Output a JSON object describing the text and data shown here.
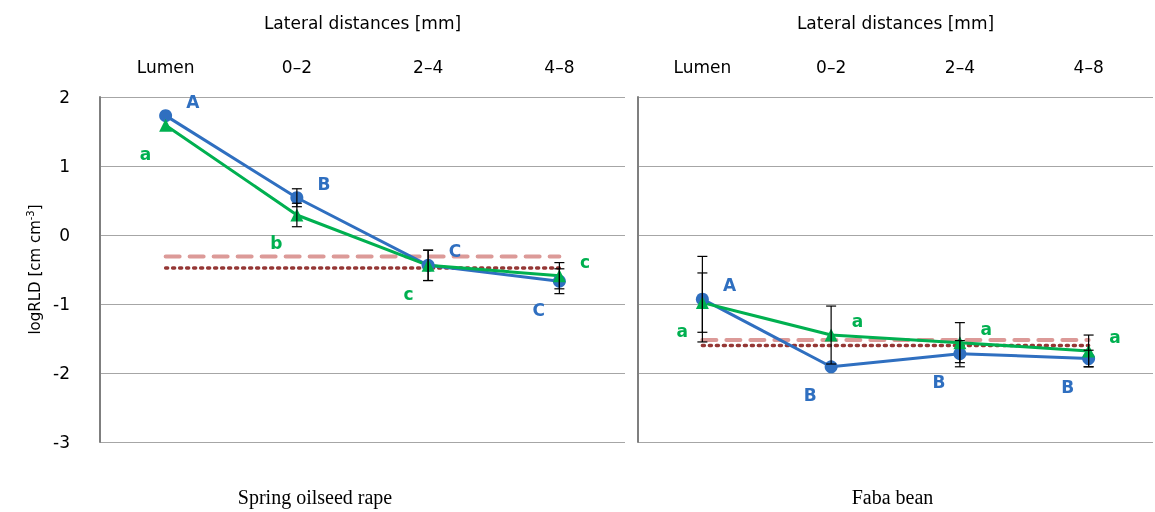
{
  "chart_data": [
    {
      "type": "line",
      "title": "Spring oilseed rape",
      "xlabel": "Lateral distances [mm]",
      "ylabel": "logRLD [cm cm$^{-3}$]",
      "categories": [
        "Lumen",
        "0–2",
        "2–4",
        "4–8"
      ],
      "ylim": [
        -3,
        2
      ],
      "yticks": [
        -3,
        -2,
        -1,
        0,
        1,
        2
      ],
      "grid": "y",
      "line_style": "solid",
      "series": [
        {
          "color": "#2f6fc0",
          "marker": "circle",
          "values": [
            1.73,
            0.54,
            -0.44,
            -0.67
          ],
          "errors": [
            null,
            0.13,
            0.22,
            0.18
          ],
          "value_labels": [
            "A",
            "B",
            "C",
            "C"
          ]
        },
        {
          "color": "#00b050",
          "marker": "triangle",
          "values": [
            1.59,
            0.29,
            -0.44,
            -0.59
          ],
          "errors": [
            null,
            0.17,
            0.22,
            0.19
          ],
          "value_labels": [
            "a",
            "b",
            "c",
            "c"
          ]
        }
      ],
      "ref_lines": [
        {
          "axis": "y",
          "value": -0.31,
          "color": "#dc9a98",
          "line_style": "dashed"
        },
        {
          "axis": "y",
          "value": -0.48,
          "color": "#953735",
          "line_style": "dotted"
        }
      ]
    },
    {
      "type": "line",
      "title": "Faba bean",
      "xlabel": "Lateral distances [mm]",
      "categories": [
        "Lumen",
        "0–2",
        "2–4",
        "4–8"
      ],
      "ylim": [
        -3,
        2
      ],
      "yticks": [
        -3,
        -2,
        -1,
        0,
        1,
        2
      ],
      "grid": "y",
      "line_style": "solid",
      "tick_labels": "x",
      "series": [
        {
          "color": "#2f6fc0",
          "marker": "circle",
          "values": [
            -0.93,
            -1.91,
            -1.72,
            -1.79
          ],
          "errors": [
            0.62,
            null,
            0.19,
            0.12
          ],
          "value_labels": [
            "A",
            "B",
            "B",
            "B"
          ]
        },
        {
          "color": "#00b050",
          "marker": "triangle",
          "values": [
            -0.98,
            -1.45,
            -1.56,
            -1.68
          ],
          "errors": [
            0.43,
            0.42,
            0.29,
            0.23
          ],
          "value_labels": [
            "a",
            "a",
            "a",
            "a"
          ]
        }
      ],
      "ref_lines": [
        {
          "axis": "y",
          "value": -1.52,
          "color": "#dc9a98",
          "line_style": "dashed"
        },
        {
          "axis": "y",
          "value": -1.6,
          "color": "#953735",
          "line_style": "dotted"
        }
      ]
    }
  ]
}
